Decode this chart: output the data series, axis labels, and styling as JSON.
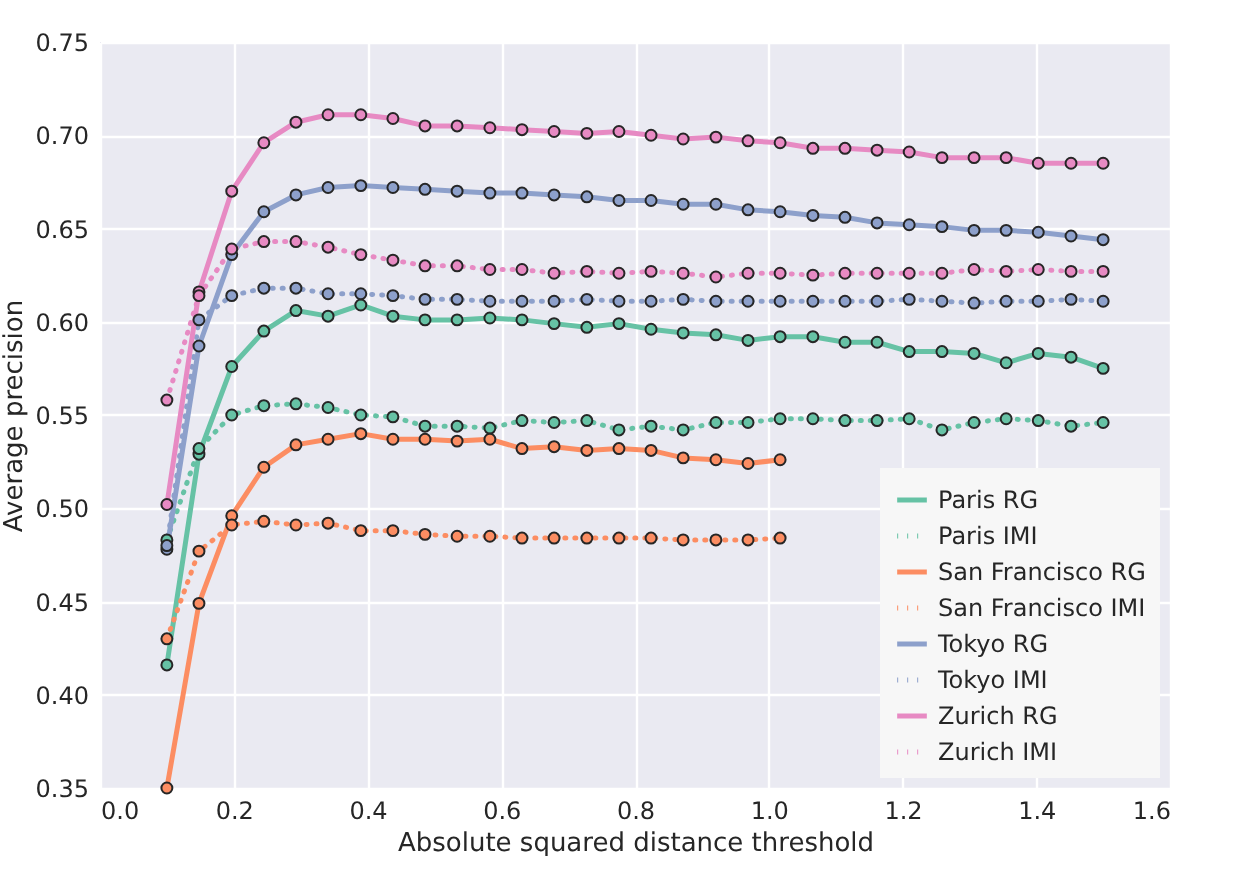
{
  "chart_data": {
    "type": "line",
    "xlabel": "Absolute squared distance threshold",
    "ylabel": "Average precision",
    "x": [
      0.1,
      0.148,
      0.197,
      0.245,
      0.293,
      0.341,
      0.39,
      0.438,
      0.486,
      0.534,
      0.583,
      0.631,
      0.679,
      0.728,
      0.776,
      0.824,
      0.872,
      0.921,
      0.969,
      1.017,
      1.066,
      1.114,
      1.162,
      1.21,
      1.259,
      1.307,
      1.355,
      1.403,
      1.452,
      1.5
    ],
    "series": [
      {
        "name": "Paris RG",
        "color": "#66c2a5",
        "line_style": "solid",
        "values": [
          0.416,
          0.529,
          0.576,
          0.595,
          0.606,
          0.603,
          0.609,
          0.603,
          0.601,
          0.601,
          0.602,
          0.601,
          0.599,
          0.597,
          0.599,
          0.596,
          0.594,
          0.593,
          0.59,
          0.592,
          0.592,
          0.589,
          0.589,
          0.584,
          0.584,
          0.583,
          0.578,
          0.583,
          0.581,
          0.575
        ]
      },
      {
        "name": "Paris IMI",
        "color": "#66c2a5",
        "line_style": "dotted",
        "values": [
          0.483,
          0.532,
          0.55,
          0.555,
          0.556,
          0.554,
          0.55,
          0.549,
          0.544,
          0.544,
          0.543,
          0.547,
          0.546,
          0.547,
          0.542,
          0.544,
          0.542,
          0.546,
          0.546,
          0.548,
          0.548,
          0.547,
          0.547,
          0.548,
          0.542,
          0.546,
          0.548,
          0.547,
          0.544,
          0.546
        ]
      },
      {
        "name": "San Francisco RG",
        "color": "#fc8d62",
        "line_style": "solid",
        "values": [
          0.35,
          0.449,
          0.496,
          0.522,
          0.534,
          0.537,
          0.54,
          0.537,
          0.537,
          0.536,
          0.537,
          0.532,
          0.533,
          0.531,
          0.532,
          0.531,
          0.527,
          0.526,
          0.524,
          0.526,
          null,
          null,
          null,
          null,
          null,
          null,
          null,
          null,
          null,
          null
        ]
      },
      {
        "name": "San Francisco IMI",
        "color": "#fc8d62",
        "line_style": "dotted",
        "values": [
          0.43,
          0.477,
          0.491,
          0.493,
          0.491,
          0.492,
          0.488,
          0.488,
          0.486,
          0.485,
          0.485,
          0.484,
          0.484,
          0.484,
          0.484,
          0.484,
          0.483,
          0.483,
          0.483,
          0.484,
          null,
          null,
          null,
          null,
          null,
          null,
          null,
          null,
          null,
          null
        ]
      },
      {
        "name": "Tokyo RG",
        "color": "#8da0cb",
        "line_style": "solid",
        "values": [
          0.478,
          0.587,
          0.636,
          0.659,
          0.668,
          0.672,
          0.673,
          0.672,
          0.671,
          0.67,
          0.669,
          0.669,
          0.668,
          0.667,
          0.665,
          0.665,
          0.663,
          0.663,
          0.66,
          0.659,
          0.657,
          0.656,
          0.653,
          0.652,
          0.651,
          0.649,
          0.649,
          0.648,
          0.646,
          0.644
        ]
      },
      {
        "name": "Tokyo IMI",
        "color": "#8da0cb",
        "line_style": "dotted",
        "values": [
          0.48,
          0.601,
          0.614,
          0.618,
          0.618,
          0.615,
          0.615,
          0.614,
          0.612,
          0.612,
          0.611,
          0.611,
          0.611,
          0.612,
          0.611,
          0.611,
          0.612,
          0.611,
          0.611,
          0.611,
          0.611,
          0.611,
          0.611,
          0.612,
          0.611,
          0.61,
          0.611,
          0.611,
          0.612,
          0.611
        ]
      },
      {
        "name": "Zurich RG",
        "color": "#e78ac3",
        "line_style": "solid",
        "values": [
          0.502,
          0.616,
          0.67,
          0.696,
          0.707,
          0.711,
          0.711,
          0.709,
          0.705,
          0.705,
          0.704,
          0.703,
          0.702,
          0.701,
          0.702,
          0.7,
          0.698,
          0.699,
          0.697,
          0.696,
          0.693,
          0.693,
          0.692,
          0.691,
          0.688,
          0.688,
          0.688,
          0.685,
          0.685,
          0.685
        ]
      },
      {
        "name": "Zurich IMI",
        "color": "#e78ac3",
        "line_style": "dotted",
        "values": [
          0.558,
          0.614,
          0.639,
          0.643,
          0.643,
          0.64,
          0.636,
          0.633,
          0.63,
          0.63,
          0.628,
          0.628,
          0.626,
          0.627,
          0.626,
          0.627,
          0.626,
          0.624,
          0.626,
          0.626,
          0.625,
          0.626,
          0.626,
          0.626,
          0.626,
          0.628,
          0.627,
          0.628,
          0.627,
          0.627
        ]
      }
    ],
    "xlim": [
      0,
      1.6
    ],
    "xticks": [
      {
        "value": 0,
        "label": "0.0"
      },
      {
        "value": 0.2,
        "label": "0.2"
      },
      {
        "value": 0.4,
        "label": "0.4"
      },
      {
        "value": 0.6,
        "label": "0.6"
      },
      {
        "value": 0.8,
        "label": "0.8"
      },
      {
        "value": 1,
        "label": "1.0"
      },
      {
        "value": 1.2,
        "label": "1.2"
      },
      {
        "value": 1.4,
        "label": "1.4"
      },
      {
        "value": 1.6,
        "label": "1.6"
      }
    ],
    "ylim": [
      0.35,
      0.75
    ],
    "yticks": [
      0.35,
      {
        "value": 0.4,
        "label": "0.40"
      },
      0.45,
      {
        "value": 0.5,
        "label": "0.50"
      },
      0.55,
      {
        "value": 0.6,
        "label": "0.60"
      },
      0.65,
      {
        "value": 0.7,
        "label": "0.70"
      },
      0.75
    ],
    "grid": true,
    "legend": "bottom right",
    "marker": "circle"
  }
}
